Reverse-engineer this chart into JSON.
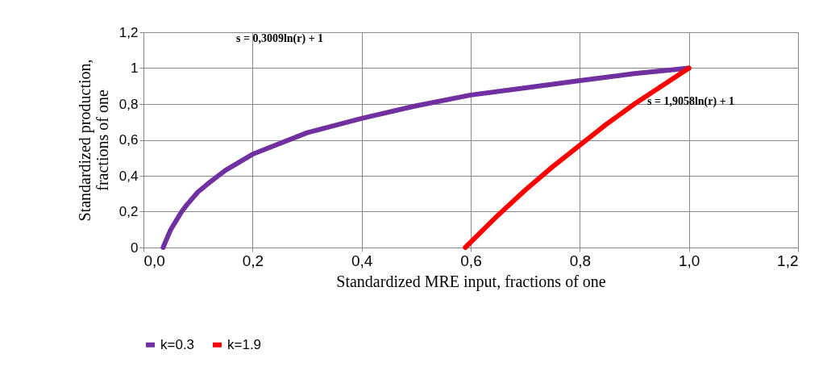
{
  "chart_data": {
    "type": "line",
    "xlabel": "Standardized MRE input, fractions of one",
    "ylabel": "Standardized production, fractions of one",
    "series": [
      {
        "name": "k=0.3",
        "color": "#7030a0",
        "x": [
          0.036,
          0.04,
          0.05,
          0.06,
          0.07,
          0.08,
          0.1,
          0.12,
          0.15,
          0.2,
          0.3,
          0.4,
          0.5,
          0.6,
          0.7,
          0.8,
          0.9,
          1.0
        ],
        "values": [
          0,
          0.03,
          0.1,
          0.15,
          0.2,
          0.24,
          0.31,
          0.36,
          0.43,
          0.52,
          0.64,
          0.72,
          0.79,
          0.85,
          0.89,
          0.93,
          0.97,
          1.0
        ]
      },
      {
        "name": "k=1.9",
        "color": "#ff0000",
        "x": [
          0.59,
          0.65,
          0.7,
          0.75,
          0.8,
          0.85,
          0.9,
          0.95,
          1.0
        ],
        "values": [
          0,
          0.18,
          0.32,
          0.45,
          0.57,
          0.69,
          0.8,
          0.9,
          1.0
        ]
      }
    ],
    "xlim": [
      0,
      1.2
    ],
    "xticks": [
      {
        "value": 0,
        "label": "0,0"
      },
      {
        "value": 0.2,
        "label": "0,2"
      },
      {
        "value": 0.4,
        "label": "0,4"
      },
      {
        "value": 0.6,
        "label": "0,6"
      },
      {
        "value": 0.8,
        "label": "0,8"
      },
      {
        "value": 1,
        "label": "1,0"
      },
      {
        "value": 1.2,
        "label": "1,2"
      }
    ],
    "ylim": [
      0,
      1.2
    ],
    "yticks": [
      0,
      {
        "value": 0.2,
        "label": "0,2"
      },
      {
        "value": 0.4,
        "label": "0,4"
      },
      {
        "value": 0.6,
        "label": "0,6"
      },
      {
        "value": 0.8,
        "label": "0,8"
      },
      1,
      {
        "value": 1.2,
        "label": "1,2"
      }
    ],
    "annotations": [
      "s = 0,3009ln(r) + 1",
      "s = 1,9058ln(r) + 1"
    ],
    "grid": true,
    "legend": "bottom",
    "marker": "none",
    "line_style": "solid"
  }
}
